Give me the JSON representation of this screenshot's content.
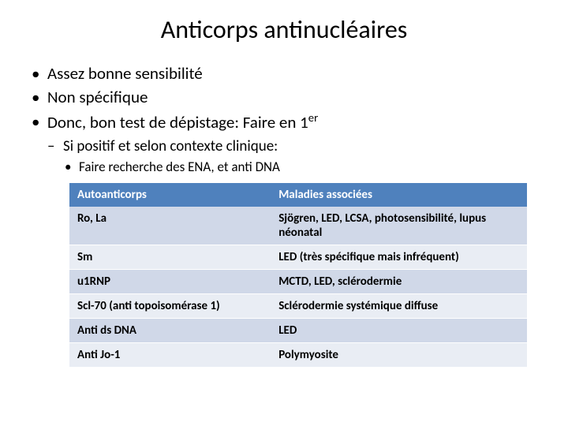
{
  "title": "Anticorps antinucléaires",
  "bullets": {
    "level1": [
      "Assez bonne sensibilité",
      "Non spécifique",
      "Donc, bon test de dépistage: Faire en 1"
    ],
    "level1_suffix_sup": "er",
    "level2": "Si positif et selon contexte clinique:",
    "level3": "Faire recherche des ENA, et anti DNA"
  },
  "table": {
    "type": "table",
    "header_bg": "#4f81bd",
    "header_fg": "#ffffff",
    "row_bg_odd": "#d0d8e8",
    "row_bg_even": "#e9edf4",
    "border_color": "#ffffff",
    "font_size": 15,
    "columns": [
      "Autoanticorps",
      "Maladies associées"
    ],
    "column_widths_pct": [
      44,
      56
    ],
    "rows": [
      [
        "Ro, La",
        "Sjögren, LED, LCSA, photosensibilité, lupus néonatal"
      ],
      [
        "Sm",
        "LED (très spécifique mais infréquent)"
      ],
      [
        "u1RNP",
        "MCTD, LED, sclérodermie"
      ],
      [
        "Scl-70 (anti topoisomérase 1)",
        "Sclérodermie systémique diffuse"
      ],
      [
        "Anti ds DNA",
        "LED"
      ],
      [
        "Anti Jo-1",
        "Polymyosite"
      ]
    ]
  },
  "colors": {
    "background": "#ffffff",
    "text": "#000000"
  }
}
